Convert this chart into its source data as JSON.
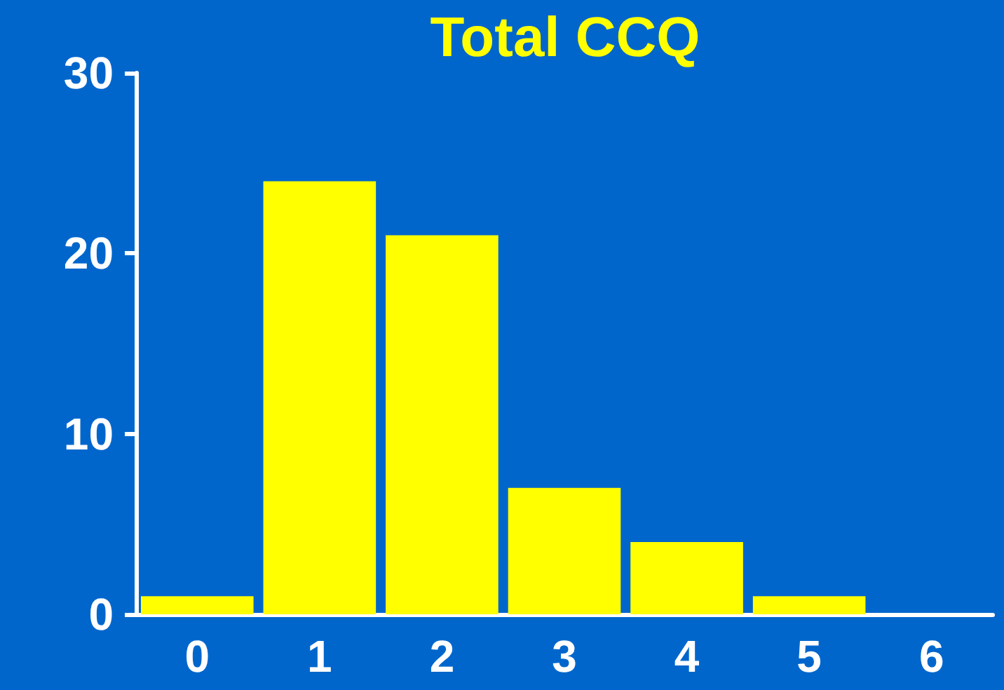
{
  "chart_data": {
    "type": "bar",
    "title": "Total CCQ",
    "categories": [
      "0",
      "1",
      "2",
      "3",
      "4",
      "5",
      "6"
    ],
    "values": [
      1,
      24,
      21,
      7,
      4,
      1,
      0
    ],
    "color": "#ffff00",
    "ylim": [
      0,
      30
    ],
    "yticks": [
      0,
      10,
      20,
      30
    ],
    "grid": false
  }
}
